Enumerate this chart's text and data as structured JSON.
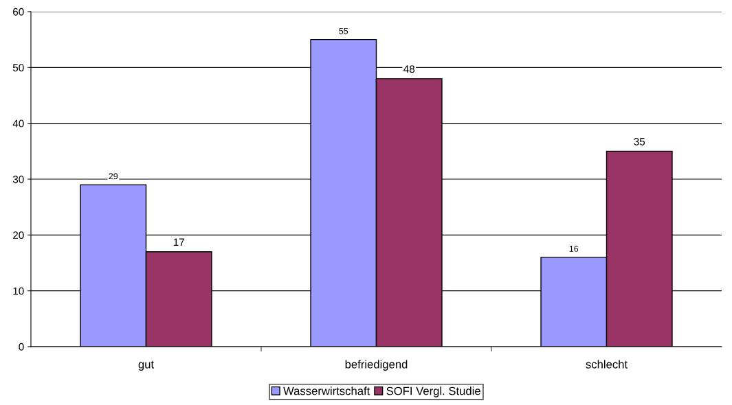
{
  "chart_data": {
    "type": "bar",
    "categories": [
      "gut",
      "befriedigend",
      "schlecht"
    ],
    "series": [
      {
        "name": "Wasserwirtschaft",
        "color": "#9999ff",
        "values": [
          29,
          55,
          16
        ]
      },
      {
        "name": "SOFI Vergl. Studie",
        "color": "#993366",
        "values": [
          17,
          48,
          35
        ]
      }
    ],
    "ylim": [
      0,
      60
    ],
    "yticks": [
      0,
      10,
      20,
      30,
      40,
      50,
      60
    ],
    "grid": "y",
    "legend": "bottom",
    "data_labels": true
  }
}
